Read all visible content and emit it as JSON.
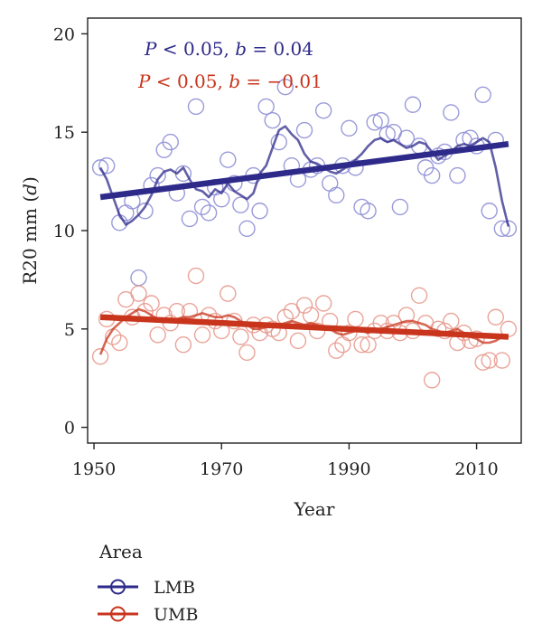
{
  "chart_data": {
    "type": "scatter",
    "xlabel": "Year",
    "ylabel_main": "R20 mm (",
    "ylabel_var": "d",
    "ylabel_end": ")",
    "xlim": [
      1949,
      2017
    ],
    "ylim": [
      -0.8,
      20.8
    ],
    "x_ticks": [
      1950,
      1970,
      1990,
      2010
    ],
    "y_ticks": [
      0,
      5,
      10,
      15,
      20
    ],
    "grid": false,
    "legend": {
      "title": "Area",
      "position": "bottom-left"
    },
    "annotations": [
      {
        "p": "P",
        "rest": " < 0.05, ",
        "b": "b",
        "eq": " = 0.04",
        "color": "#2e2a8a"
      },
      {
        "p": "P",
        "rest": " < 0.05, ",
        "b": "b",
        "eq": " = −0.01",
        "color": "#c8341c"
      }
    ],
    "series": [
      {
        "name": "LMB",
        "color": "#2e2a8a",
        "point_color": "#8f8fd6",
        "trend": {
          "x": [
            1951,
            2015
          ],
          "y": [
            11.7,
            14.4
          ]
        },
        "points": {
          "x": [
            1951,
            1952,
            1954,
            1955,
            1956,
            1957,
            1958,
            1959,
            1960,
            1961,
            1962,
            1963,
            1964,
            1965,
            1966,
            1967,
            1968,
            1969,
            1970,
            1971,
            1972,
            1973,
            1974,
            1975,
            1976,
            1977,
            1978,
            1979,
            1980,
            1981,
            1982,
            1983,
            1984,
            1985,
            1986,
            1987,
            1988,
            1989,
            1990,
            1991,
            1992,
            1993,
            1994,
            1995,
            1996,
            1997,
            1998,
            1999,
            2000,
            2001,
            2002,
            2003,
            2004,
            2005,
            2006,
            2007,
            2008,
            2009,
            2010,
            2011,
            2012,
            2013,
            2014,
            2015
          ],
          "y": [
            13.2,
            13.3,
            10.4,
            10.9,
            11.5,
            7.6,
            11.0,
            12.3,
            12.8,
            14.1,
            14.5,
            11.9,
            12.9,
            10.6,
            16.3,
            11.2,
            10.9,
            12.2,
            11.6,
            13.6,
            12.4,
            11.3,
            10.1,
            12.8,
            11.0,
            16.3,
            15.6,
            14.5,
            17.3,
            13.3,
            12.6,
            15.1,
            13.1,
            13.3,
            16.1,
            12.4,
            11.8,
            13.3,
            15.2,
            13.2,
            11.2,
            11.0,
            15.5,
            15.6,
            14.9,
            15.0,
            11.2,
            14.7,
            16.4,
            14.3,
            13.2,
            12.8,
            13.8,
            14.0,
            16.0,
            12.8,
            14.6,
            14.7,
            14.3,
            16.9,
            11.0,
            14.6,
            10.1,
            10.1
          ]
        },
        "smooth": {
          "x": [
            1951,
            1952,
            1953,
            1954,
            1955,
            1956,
            1957,
            1958,
            1959,
            1960,
            1961,
            1962,
            1963,
            1964,
            1965,
            1966,
            1967,
            1968,
            1969,
            1970,
            1971,
            1972,
            1973,
            1974,
            1975,
            1976,
            1977,
            1978,
            1979,
            1980,
            1981,
            1982,
            1983,
            1984,
            1985,
            1986,
            1987,
            1988,
            1989,
            1990,
            1991,
            1992,
            1993,
            1994,
            1995,
            1996,
            1997,
            1998,
            1999,
            2000,
            2001,
            2002,
            2003,
            2004,
            2005,
            2006,
            2007,
            2008,
            2009,
            2010,
            2011,
            2012,
            2013,
            2014,
            2015
          ],
          "y": [
            13.2,
            12.6,
            11.7,
            10.8,
            10.3,
            10.5,
            10.8,
            11.2,
            11.8,
            12.6,
            13.0,
            13.1,
            12.9,
            13.2,
            12.6,
            12.1,
            12.0,
            11.7,
            12.1,
            11.9,
            12.4,
            12.0,
            11.8,
            11.6,
            11.9,
            12.9,
            13.3,
            14.2,
            15.1,
            15.3,
            14.9,
            14.6,
            13.9,
            13.5,
            13.4,
            13.2,
            13.0,
            12.9,
            13.1,
            13.3,
            13.6,
            13.9,
            14.3,
            14.6,
            14.7,
            14.5,
            14.6,
            14.4,
            14.2,
            14.3,
            14.5,
            14.4,
            14.0,
            13.6,
            13.8,
            14.0,
            14.3,
            14.4,
            14.3,
            14.5,
            14.7,
            14.5,
            13.2,
            11.5,
            10.2
          ]
        }
      },
      {
        "name": "UMB",
        "color": "#c8341c",
        "point_color": "#e89a8e",
        "trend": {
          "x": [
            1951,
            2015
          ],
          "y": [
            5.6,
            4.6
          ]
        },
        "points": {
          "x": [
            1951,
            1952,
            1953,
            1954,
            1955,
            1956,
            1957,
            1958,
            1959,
            1960,
            1961,
            1962,
            1963,
            1964,
            1965,
            1966,
            1967,
            1968,
            1969,
            1970,
            1971,
            1972,
            1973,
            1974,
            1975,
            1976,
            1977,
            1978,
            1979,
            1980,
            1981,
            1982,
            1983,
            1984,
            1985,
            1986,
            1987,
            1988,
            1989,
            1990,
            1991,
            1992,
            1993,
            1994,
            1995,
            1996,
            1997,
            1998,
            1999,
            2000,
            2001,
            2002,
            2003,
            2004,
            2005,
            2006,
            2007,
            2008,
            2009,
            2010,
            2011,
            2012,
            2013,
            2014,
            2015
          ],
          "y": [
            3.6,
            5.5,
            4.6,
            4.3,
            6.5,
            5.6,
            6.8,
            5.9,
            6.3,
            4.7,
            5.7,
            5.3,
            5.9,
            4.2,
            5.9,
            7.7,
            4.7,
            5.7,
            5.4,
            4.9,
            6.8,
            5.4,
            4.6,
            3.8,
            5.2,
            4.8,
            5.2,
            5.0,
            4.8,
            5.6,
            5.9,
            4.4,
            6.2,
            5.7,
            4.9,
            6.3,
            5.4,
            3.9,
            4.2,
            4.8,
            5.5,
            4.2,
            4.2,
            4.9,
            5.3,
            4.9,
            5.3,
            4.8,
            5.7,
            4.9,
            6.7,
            5.3,
            2.4,
            5.0,
            4.9,
            5.4,
            4.3,
            4.8,
            4.4,
            4.5,
            3.3,
            3.4,
            5.6,
            3.4,
            5.0
          ]
        },
        "smooth": {
          "x": [
            1951,
            1952,
            1953,
            1954,
            1955,
            1956,
            1957,
            1958,
            1959,
            1960,
            1961,
            1962,
            1963,
            1964,
            1965,
            1966,
            1967,
            1968,
            1969,
            1970,
            1971,
            1972,
            1973,
            1974,
            1975,
            1976,
            1977,
            1978,
            1979,
            1980,
            1981,
            1982,
            1983,
            1984,
            1985,
            1986,
            1987,
            1988,
            1989,
            1990,
            1991,
            1992,
            1993,
            1994,
            1995,
            1996,
            1997,
            1998,
            1999,
            2000,
            2001,
            2002,
            2003,
            2004,
            2005,
            2006,
            2007,
            2008,
            2009,
            2010,
            2011,
            2012,
            2013,
            2014,
            2015
          ],
          "y": [
            3.7,
            4.5,
            5.0,
            5.3,
            5.6,
            5.8,
            6.0,
            5.9,
            5.7,
            5.5,
            5.4,
            5.4,
            5.5,
            5.6,
            5.6,
            5.7,
            5.8,
            5.7,
            5.6,
            5.6,
            5.7,
            5.6,
            5.4,
            5.2,
            5.0,
            5.0,
            5.1,
            5.1,
            5.2,
            5.3,
            5.4,
            5.3,
            5.2,
            5.3,
            5.2,
            5.1,
            5.0,
            4.8,
            4.7,
            4.8,
            4.9,
            4.9,
            4.8,
            4.9,
            5.0,
            5.1,
            5.2,
            5.3,
            5.4,
            5.4,
            5.3,
            5.2,
            5.0,
            4.9,
            4.8,
            4.9,
            5.0,
            4.8,
            4.6,
            4.5,
            4.3,
            4.3,
            4.4,
            4.6,
            4.6
          ]
        }
      }
    ]
  }
}
